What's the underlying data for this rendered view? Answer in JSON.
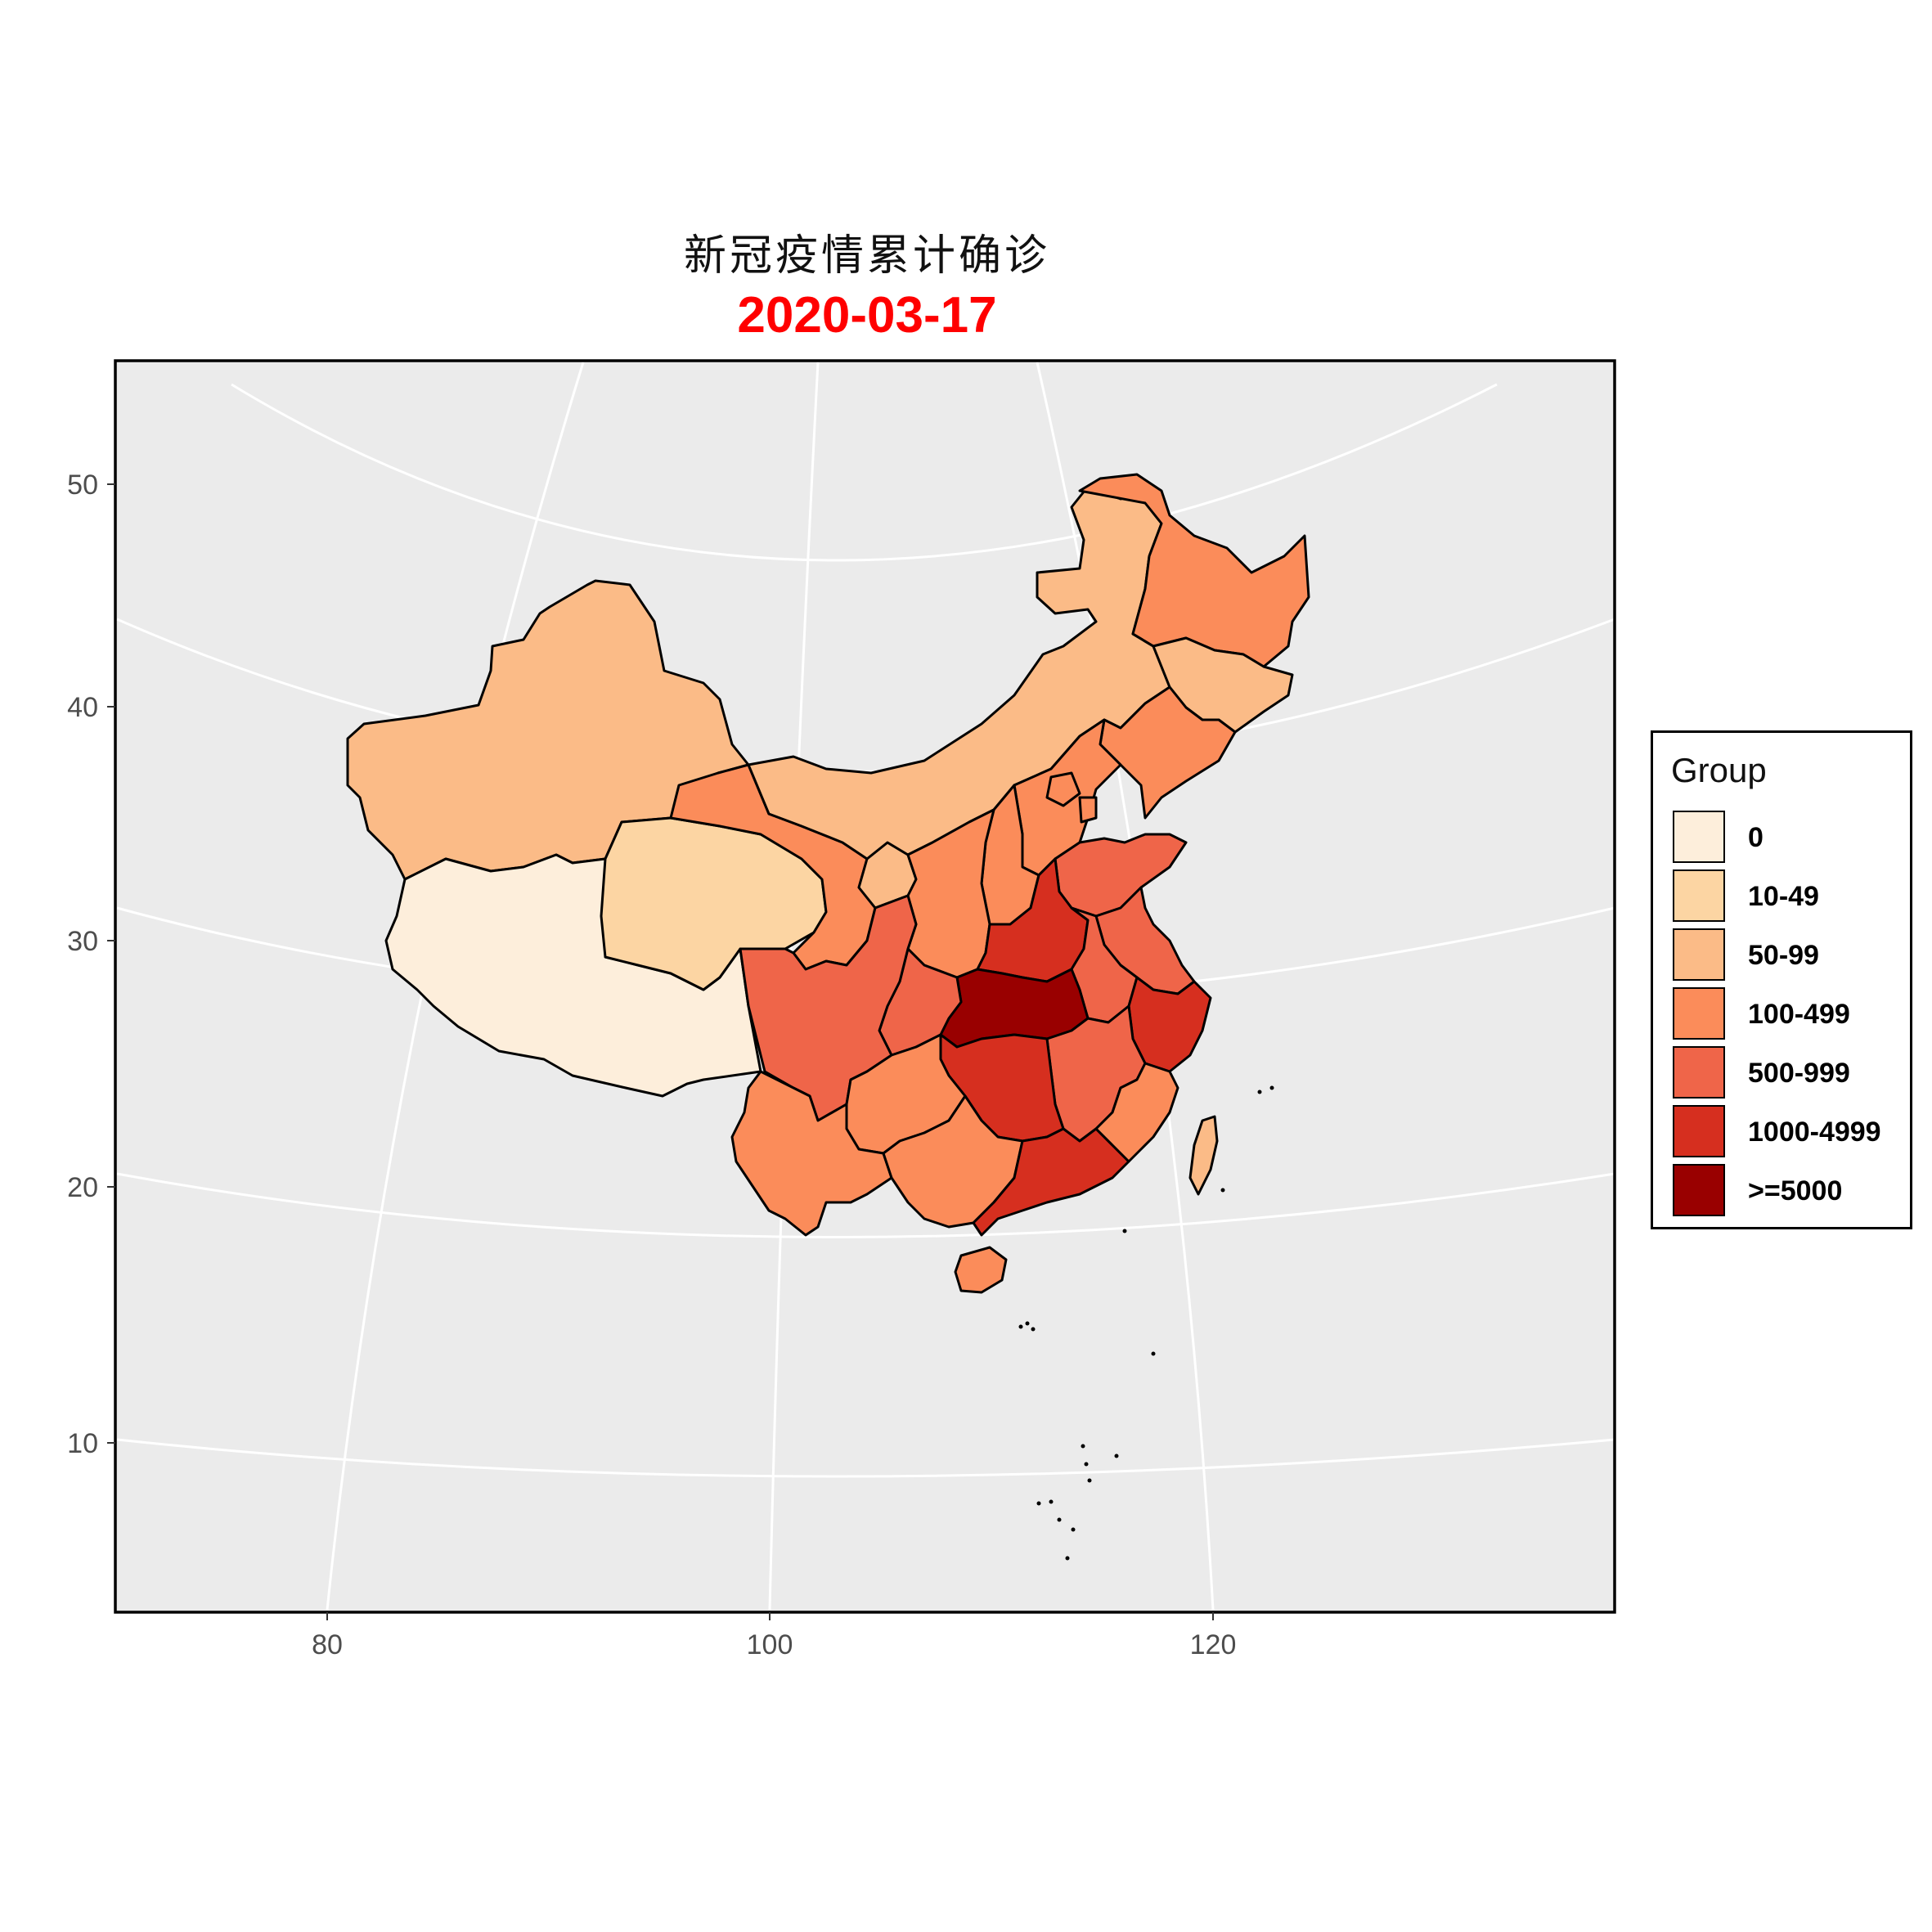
{
  "title": {
    "main": "新冠疫情累计确诊",
    "date": "2020-03-17",
    "date_color": "#ff0000"
  },
  "axes": {
    "x_ticks": [
      "80",
      "100",
      "120"
    ],
    "y_ticks": [
      "50",
      "40",
      "30",
      "20",
      "10"
    ]
  },
  "colors": {
    "panel_bg": "#ebebeb",
    "grid": "#ffffff",
    "border": "#000000"
  },
  "legend": {
    "title": "Group",
    "items": [
      {
        "label": "0",
        "color": "#fdeedb"
      },
      {
        "label": "10-49",
        "color": "#fcd5a3"
      },
      {
        "label": "50-99",
        "color": "#fbbb87"
      },
      {
        "label": "100-499",
        "color": "#fb8c5a"
      },
      {
        "label": "500-999",
        "color": "#ef6549"
      },
      {
        "label": "1000-4999",
        "color": "#d62f1f"
      },
      {
        "label": ">=5000",
        "color": "#990000"
      }
    ]
  },
  "regions": [
    {
      "name": "Xinjiang",
      "group": "50-99"
    },
    {
      "name": "Tibet",
      "group": "0"
    },
    {
      "name": "Qinghai",
      "group": "10-49"
    },
    {
      "name": "Gansu",
      "group": "100-499"
    },
    {
      "name": "Inner Mongolia",
      "group": "50-99"
    },
    {
      "name": "Heilongjiang",
      "group": "100-499"
    },
    {
      "name": "Jilin",
      "group": "50-99"
    },
    {
      "name": "Liaoning",
      "group": "100-499"
    },
    {
      "name": "Sichuan",
      "group": "500-999"
    },
    {
      "name": "Yunnan",
      "group": "100-499"
    },
    {
      "name": "Guizhou",
      "group": "100-499"
    },
    {
      "name": "Guangxi",
      "group": "100-499"
    },
    {
      "name": "Guangdong",
      "group": "1000-4999"
    },
    {
      "name": "Hunan",
      "group": "1000-4999"
    },
    {
      "name": "Hubei",
      "group": ">=5000"
    },
    {
      "name": "Henan",
      "group": "1000-4999"
    },
    {
      "name": "Shandong",
      "group": "500-999"
    },
    {
      "name": "Jiangsu",
      "group": "500-999"
    },
    {
      "name": "Anhui",
      "group": "500-999"
    },
    {
      "name": "Zhejiang",
      "group": "1000-4999"
    },
    {
      "name": "Jiangxi",
      "group": "500-999"
    },
    {
      "name": "Fujian",
      "group": "100-499"
    },
    {
      "name": "Taiwan",
      "group": "50-99"
    },
    {
      "name": "Hainan",
      "group": "100-499"
    },
    {
      "name": "Shaanxi",
      "group": "100-499"
    },
    {
      "name": "Shanxi",
      "group": "100-499"
    },
    {
      "name": "Hebei",
      "group": "100-499"
    },
    {
      "name": "Chongqing",
      "group": "500-999"
    },
    {
      "name": "Ningxia",
      "group": "50-99"
    },
    {
      "name": "Beijing",
      "group": "100-499"
    },
    {
      "name": "Tianjin",
      "group": "100-499"
    }
  ]
}
